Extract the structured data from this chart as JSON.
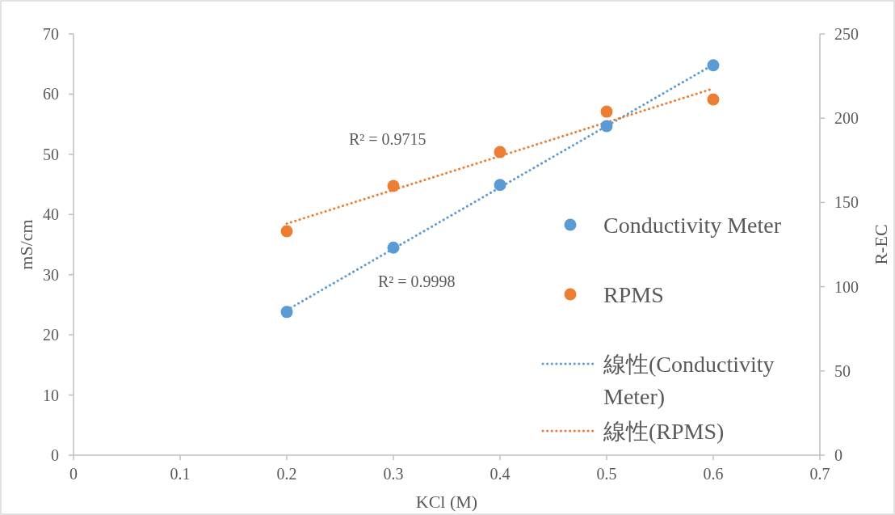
{
  "chart_data": {
    "type": "scatter",
    "xlabel": "KCl (M)",
    "ylabel": "mS/cm",
    "y2label": "R-EC",
    "xlim": [
      0,
      0.7
    ],
    "xticks": [
      0,
      0.1,
      0.2,
      0.3,
      0.4,
      0.5,
      0.6,
      0.7
    ],
    "ylim": [
      0,
      70
    ],
    "yticks": [
      0,
      10,
      20,
      30,
      40,
      50,
      60,
      70
    ],
    "y2lim": [
      0,
      250
    ],
    "y2ticks": [
      0,
      50,
      100,
      150,
      200,
      250
    ],
    "marker": "circle",
    "legend": "right",
    "grid": false,
    "annotations": [
      "R² = 0.9715",
      "R² = 0.9998"
    ],
    "series": [
      {
        "name": "Conductivity Meter",
        "color": "#5b9bd5",
        "x": [
          0.2,
          0.3,
          0.4,
          0.5,
          0.6
        ],
        "values": [
          23.8,
          34.5,
          44.9,
          54.7,
          64.8
        ]
      },
      {
        "name": "RPMS",
        "color": "#ed7d31",
        "axis": "y2",
        "x": [
          0.2,
          0.3,
          0.4,
          0.5,
          0.6
        ],
        "values": [
          132.9,
          159.8,
          179.9,
          203.9,
          211.1
        ]
      },
      {
        "name": "線性(Conductivity Meter)",
        "type": "line",
        "line_style": "dotted",
        "marker": "none",
        "color": "#5b9bd5",
        "x": [
          0.2,
          0.6
        ],
        "values": [
          24.1,
          64.9
        ]
      },
      {
        "name": "線性(RPMS)",
        "type": "line",
        "line_style": "dotted",
        "marker": "none",
        "color": "#ed7d31",
        "axis": "y2",
        "x": [
          0.2,
          0.6
        ],
        "values": [
          137.4,
          217.6
        ]
      }
    ]
  }
}
